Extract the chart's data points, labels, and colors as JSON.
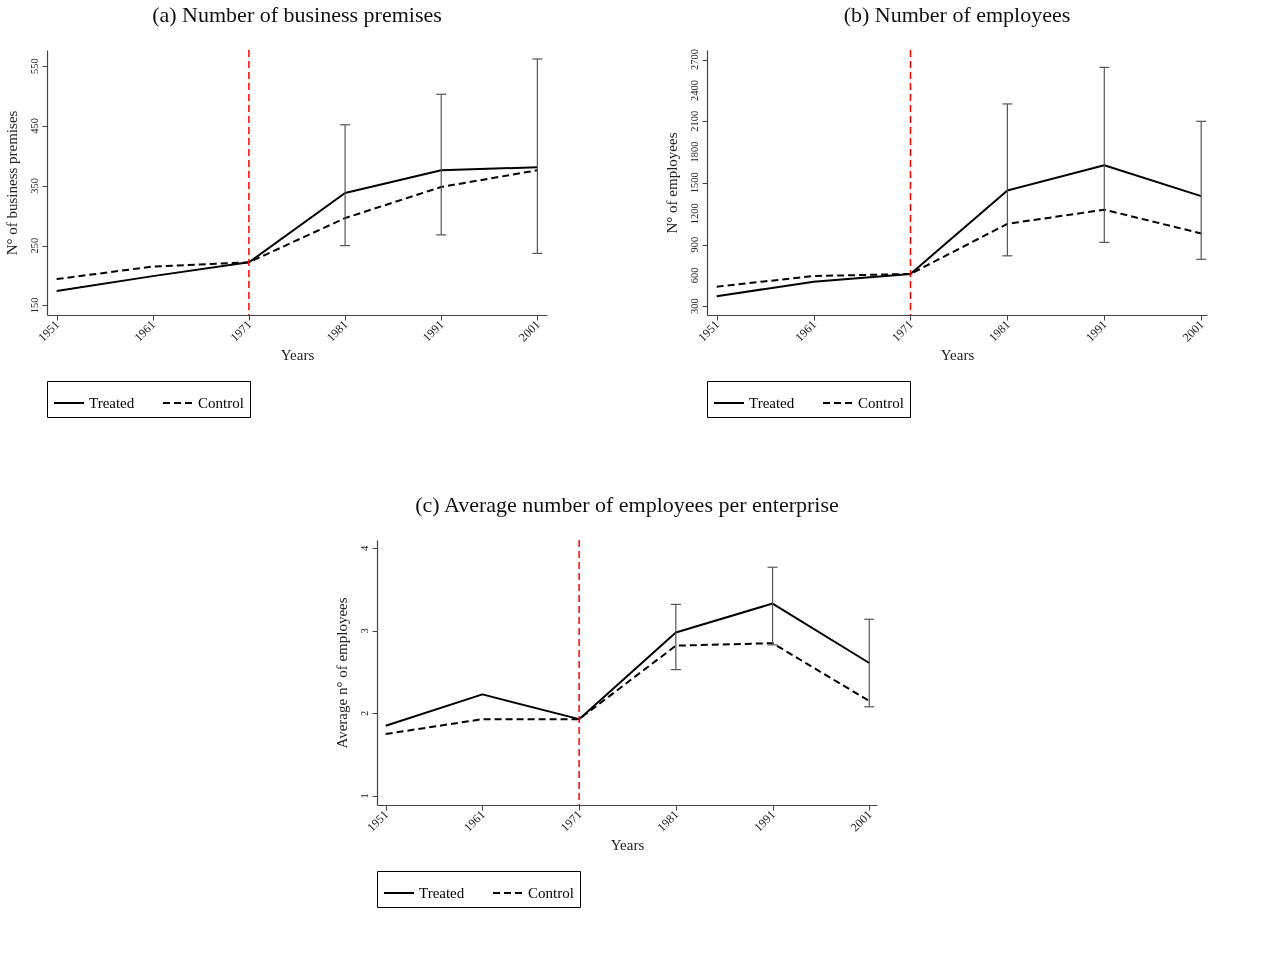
{
  "chart_data": [
    {
      "type": "line",
      "title": "(a) Number of business premises",
      "xlabel": "Years",
      "ylabel": "N° of business premises",
      "x": [
        1951,
        1961,
        1971,
        1981,
        1991,
        2001
      ],
      "xlim": [
        1950,
        2002
      ],
      "xticks": [
        1951,
        1961,
        1971,
        1981,
        1991,
        2001
      ],
      "ylim": [
        134,
        577
      ],
      "yticks": [
        150,
        250,
        350,
        450,
        550
      ],
      "grid": false,
      "legend": "bottom",
      "marker": "none",
      "series": [
        {
          "name": "Treated",
          "color": "#000000",
          "line_style": "solid",
          "values": [
            174,
            199,
            222,
            338,
            376,
            381
          ],
          "errors": [
            null,
            null,
            null,
            [
              250,
              452
            ],
            [
              268,
              503
            ],
            [
              237,
              562
            ]
          ]
        },
        {
          "name": "Control",
          "color": "#000000",
          "line_style": "dashed",
          "values": [
            194,
            215,
            222,
            296,
            348,
            376
          ]
        }
      ],
      "ref_lines": [
        {
          "axis": "x",
          "value": 1971,
          "color": "#ff0000",
          "line_style": "dashed"
        }
      ]
    },
    {
      "type": "line",
      "title": "(b) Number of employees",
      "xlabel": "Years",
      "ylabel": "N° of employees",
      "x": [
        1951,
        1961,
        1971,
        1981,
        1991,
        2001
      ],
      "xlim": [
        1950,
        2001.6
      ],
      "xticks": [
        1951,
        1961,
        1971,
        1981,
        1991,
        2001
      ],
      "ylim": [
        214,
        2793
      ],
      "yticks": [
        300,
        600,
        900,
        1200,
        1500,
        1800,
        2100,
        2400,
        2700
      ],
      "grid": false,
      "legend": "bottom",
      "marker": "none",
      "series": [
        {
          "name": "Treated",
          "color": "#000000",
          "line_style": "solid",
          "values": [
            397,
            538,
            614,
            1426,
            1671,
            1371
          ],
          "errors": [
            null,
            null,
            null,
            [
              790,
              2268
            ],
            [
              921,
              2624
            ],
            [
              756,
              2099
            ]
          ]
        },
        {
          "name": "Control",
          "color": "#000000",
          "line_style": "dashed",
          "values": [
            490,
            593,
            614,
            1101,
            1239,
            1008
          ]
        }
      ],
      "ref_lines": [
        {
          "axis": "x",
          "value": 1971,
          "color": "#ff0000",
          "line_style": "dashed"
        }
      ]
    },
    {
      "type": "line",
      "title": "(c) Average number of employees per enterprise",
      "xlabel": "Years",
      "ylabel": "Average n° of employees",
      "x": [
        1951,
        1961,
        1971,
        1981,
        1991,
        2001
      ],
      "xlim": [
        1950.1,
        2001.8
      ],
      "xticks": [
        1951,
        1961,
        1971,
        1981,
        1991,
        2001
      ],
      "ylim": [
        0.89,
        4.1
      ],
      "yticks": [
        1,
        2,
        3,
        4
      ],
      "grid": false,
      "legend": "bottom",
      "marker": "none",
      "series": [
        {
          "name": "Treated",
          "color": "#000000",
          "line_style": "solid",
          "values": [
            1.85,
            2.23,
            1.93,
            2.98,
            3.33,
            2.61
          ],
          "errors": [
            null,
            null,
            null,
            [
              2.53,
              3.32
            ],
            [
              2.83,
              3.77
            ],
            [
              2.08,
              3.14
            ]
          ]
        },
        {
          "name": "Control",
          "color": "#000000",
          "line_style": "dashed",
          "values": [
            1.75,
            1.93,
            1.93,
            2.82,
            2.85,
            2.15
          ]
        }
      ],
      "ref_lines": [
        {
          "axis": "x",
          "value": 1971,
          "color": "#ff0000",
          "line_style": "dashed"
        }
      ]
    }
  ]
}
